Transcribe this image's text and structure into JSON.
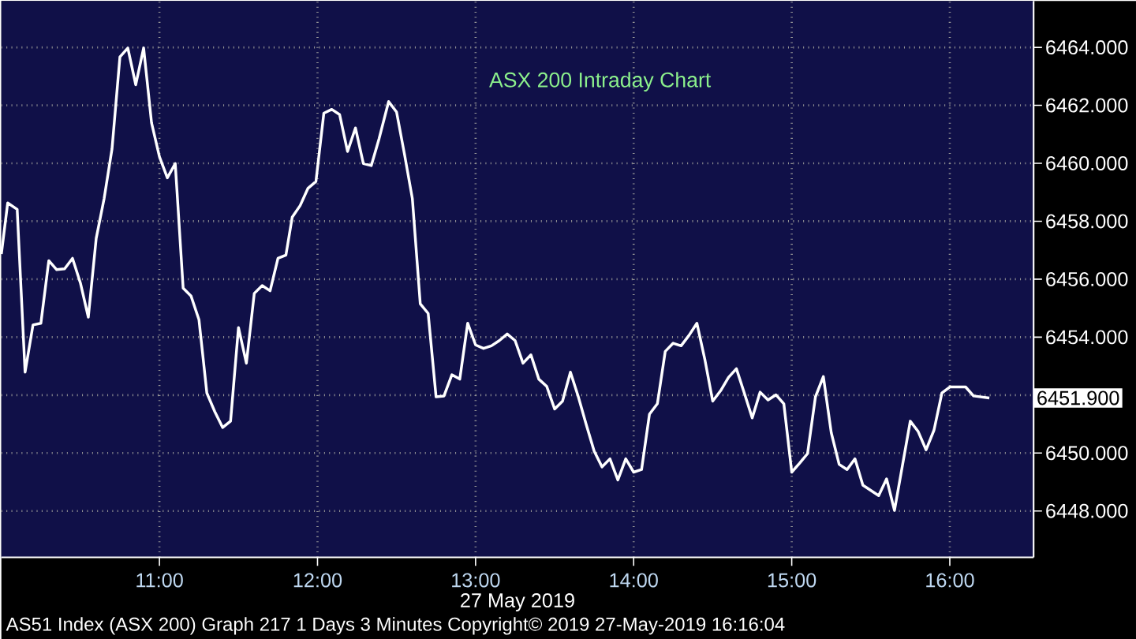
{
  "chart_data": {
    "type": "line",
    "title": "ASX 200 Intraday Chart",
    "xlabel": "27 May 2019",
    "annotations": [
      "6451.900",
      "AS51 Index (ASX 200) Graph 217 1 Days 3 Minutes Copyright© 2019 27-May-2019 16:16:04"
    ],
    "x": [
      10.0,
      10.04,
      10.1,
      10.15,
      10.2,
      10.25,
      10.3,
      10.35,
      10.4,
      10.45,
      10.5,
      10.55,
      10.6,
      10.65,
      10.7,
      10.75,
      10.8,
      10.85,
      10.9,
      10.95,
      11.0,
      11.05,
      11.1,
      11.15,
      11.2,
      11.25,
      11.3,
      11.35,
      11.4,
      11.45,
      11.5,
      11.55,
      11.6,
      11.65,
      11.7,
      11.75,
      11.8,
      11.84,
      11.89,
      11.94,
      11.99,
      12.04,
      12.09,
      12.14,
      12.19,
      12.24,
      12.29,
      12.34,
      12.39,
      12.45,
      12.5,
      12.55,
      12.6,
      12.65,
      12.7,
      12.75,
      12.8,
      12.85,
      12.9,
      12.95,
      13.0,
      13.05,
      13.1,
      13.15,
      13.2,
      13.25,
      13.3,
      13.35,
      13.4,
      13.45,
      13.5,
      13.55,
      13.6,
      13.65,
      13.7,
      13.75,
      13.8,
      13.85,
      13.9,
      13.95,
      14.0,
      14.05,
      14.1,
      14.15,
      14.2,
      14.25,
      14.3,
      14.35,
      14.4,
      14.45,
      14.5,
      14.55,
      14.6,
      14.65,
      14.7,
      14.75,
      14.8,
      14.85,
      14.9,
      14.95,
      15.0,
      15.05,
      15.1,
      15.15,
      15.2,
      15.25,
      15.3,
      15.35,
      15.4,
      15.45,
      15.55,
      15.6,
      15.65,
      15.75,
      15.8,
      15.85,
      15.9,
      15.95,
      16.0,
      16.1,
      16.15,
      16.25
    ],
    "series": [
      {
        "color": "#ffffff",
        "values": [
          6456.87,
          6458.63,
          6458.41,
          6452.79,
          6454.42,
          6454.48,
          6456.64,
          6456.33,
          6456.36,
          6456.72,
          6455.87,
          6454.69,
          6457.41,
          6458.78,
          6460.5,
          6463.67,
          6463.98,
          6462.71,
          6463.98,
          6461.4,
          6460.23,
          6459.5,
          6459.99,
          6455.69,
          6455.42,
          6454.6,
          6452.07,
          6451.43,
          6450.88,
          6451.1,
          6454.33,
          6453.1,
          6455.51,
          6455.78,
          6455.6,
          6456.72,
          6456.83,
          6458.14,
          6458.54,
          6459.14,
          6459.37,
          6461.73,
          6461.86,
          6461.68,
          6460.41,
          6461.22,
          6459.99,
          6459.92,
          6460.86,
          6462.13,
          6461.77,
          6460.32,
          6458.78,
          6455.15,
          6454.82,
          6451.94,
          6451.97,
          6452.7,
          6452.55,
          6454.48,
          6453.73,
          6453.61,
          6453.7,
          6453.88,
          6454.11,
          6453.88,
          6453.1,
          6453.39,
          6452.55,
          6452.3,
          6451.52,
          6451.79,
          6452.79,
          6451.94,
          6450.98,
          6450.07,
          6449.52,
          6449.8,
          6449.07,
          6449.8,
          6449.34,
          6449.43,
          6451.34,
          6451.7,
          6453.51,
          6453.79,
          6453.7,
          6454.06,
          6454.48,
          6453.24,
          6451.79,
          6452.15,
          6452.61,
          6452.91,
          6452.07,
          6451.21,
          6452.1,
          6451.83,
          6452.01,
          6451.7,
          6449.34,
          6449.65,
          6449.98,
          6451.94,
          6452.64,
          6450.7,
          6449.61,
          6449.43,
          6449.8,
          6448.89,
          6448.53,
          6449.11,
          6448.02,
          6451.1,
          6450.74,
          6450.11,
          6450.79,
          6452.07,
          6452.28,
          6452.28,
          6451.97,
          6451.9
        ]
      }
    ],
    "xlim": [
      10,
      16.53
    ],
    "ylim": [
      6446.4,
      6465.6
    ],
    "xticks": [
      {
        "value": 11,
        "label": "11:00"
      },
      {
        "value": 12,
        "label": "12:00"
      },
      {
        "value": 13,
        "label": "13:00"
      },
      {
        "value": 14,
        "label": "14:00"
      },
      {
        "value": 15,
        "label": "15:00"
      },
      {
        "value": 16,
        "label": "16:00"
      }
    ],
    "yticks": [
      {
        "value": 6448,
        "label": "6448.000"
      },
      {
        "value": 6450,
        "label": "6450.000"
      },
      {
        "value": 6452,
        "label": null
      },
      {
        "value": 6454,
        "label": "6454.000"
      },
      {
        "value": 6456,
        "label": "6456.000"
      },
      {
        "value": 6458,
        "label": "6458.000"
      },
      {
        "value": 6460,
        "label": "6460.000"
      },
      {
        "value": 6462,
        "label": "6462.000"
      },
      {
        "value": 6464,
        "label": "6464.000"
      }
    ],
    "grid": true,
    "marker": "none",
    "line_style": "solid"
  }
}
